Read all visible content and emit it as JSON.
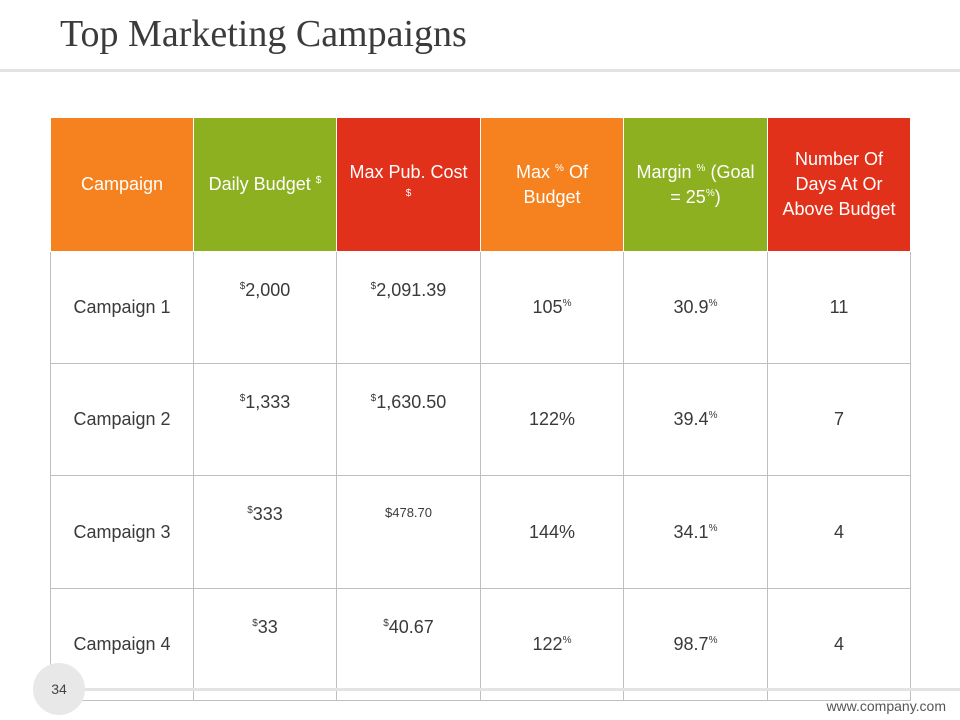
{
  "slide": {
    "title": "Top Marketing Campaigns",
    "page_number": "34",
    "footer_url": "www.company.com"
  },
  "colors": {
    "orange": "#f5821f",
    "green": "#8db021",
    "red": "#e2311b"
  },
  "table": {
    "headers": [
      {
        "text": "Campaign",
        "color": "orange"
      },
      {
        "text": "Daily Budget",
        "sup": "$",
        "color": "green"
      },
      {
        "text": "Max Pub. Cost",
        "sup": "$",
        "color": "red"
      },
      {
        "text_before": "Max",
        "sup": "%",
        "text_after": "Of Budget",
        "color": "orange"
      },
      {
        "text_before": "Margin",
        "sup": "%",
        "text_mid": "(Goal = 25",
        "sup2": "%",
        "text_after": ")",
        "color": "green"
      },
      {
        "text": "Number Of Days At Or Above Budget",
        "color": "red"
      }
    ],
    "rows": [
      {
        "campaign": "Campaign 1",
        "budget_sup": "$",
        "budget": "2,000",
        "cost_sup": "$",
        "cost": "2,091.39",
        "max_pct": "105",
        "max_pct_sup": "%",
        "margin": "30.9",
        "margin_sup": "%",
        "days": "11"
      },
      {
        "campaign": "Campaign 2",
        "budget_sup": "$",
        "budget": "1,333",
        "cost_sup": "$",
        "cost": "1,630.50",
        "max_pct": "122%",
        "max_pct_sup": "",
        "margin": "39.4",
        "margin_sup": "%",
        "days": "7"
      },
      {
        "campaign": "Campaign 3",
        "budget_sup": "$",
        "budget": "333",
        "cost_sup": "",
        "cost": "$478.70",
        "max_pct": "144%",
        "max_pct_sup": "",
        "margin": "34.1",
        "margin_sup": "%",
        "days": "4"
      },
      {
        "campaign": "Campaign 4",
        "budget_sup": "$",
        "budget": "33",
        "cost_sup": "$",
        "cost": "40.67",
        "max_pct": "122",
        "max_pct_sup": "%",
        "margin": "98.7",
        "margin_sup": "%",
        "days": "4"
      }
    ]
  }
}
